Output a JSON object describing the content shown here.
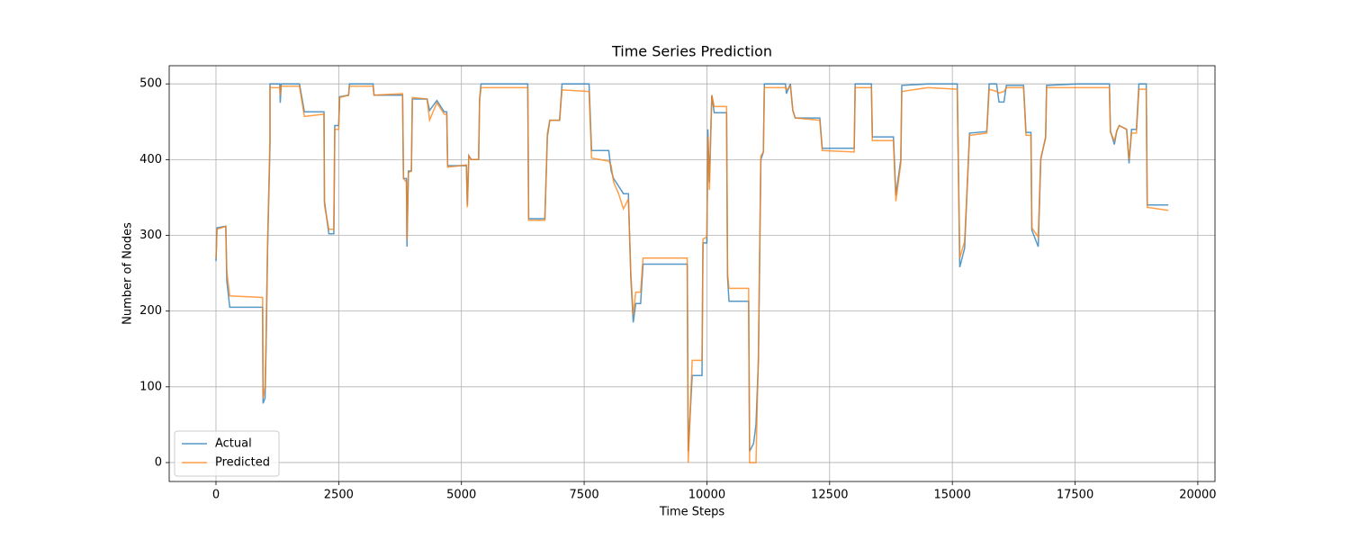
{
  "chart_data": {
    "type": "line",
    "title": "Time Series Prediction",
    "x_label": "Time Steps",
    "y_label": "Number of Nodes",
    "xlim": [
      -953,
      20350
    ],
    "ylim": [
      -25,
      524
    ],
    "xticks": [
      0,
      2500,
      5000,
      7500,
      10000,
      12500,
      15000,
      17500,
      20000
    ],
    "yticks": [
      0,
      100,
      200,
      300,
      400,
      500
    ],
    "grid": true,
    "legend": "lower left",
    "x": [
      0,
      20,
      200,
      220,
      280,
      950,
      960,
      1000,
      1020,
      1050,
      1100,
      1100,
      1300,
      1310,
      1330,
      1700,
      1800,
      2200,
      2210,
      2300,
      2400,
      2420,
      2500,
      2520,
      2700,
      2720,
      3200,
      3220,
      3800,
      3820,
      3880,
      3890,
      3920,
      3980,
      4000,
      4300,
      4350,
      4500,
      4650,
      4700,
      4720,
      5100,
      5120,
      5150,
      5200,
      5350,
      5370,
      5400,
      6350,
      6370,
      6700,
      6750,
      6800,
      7000,
      7050,
      7600,
      7650,
      8000,
      8050,
      8100,
      8200,
      8300,
      8400,
      8450,
      8500,
      8550,
      8650,
      8700,
      9600,
      9620,
      9700,
      9900,
      9920,
      10000,
      10020,
      10050,
      10100,
      10150,
      10400,
      10420,
      10450,
      10850,
      10870,
      10950,
      11000,
      11050,
      11100,
      11150,
      11170,
      11600,
      11620,
      11700,
      11750,
      11800,
      12300,
      12350,
      13000,
      13020,
      13350,
      13370,
      13800,
      13850,
      13950,
      13970,
      14500,
      15100,
      15150,
      15250,
      15350,
      15700,
      15750,
      15900,
      15950,
      16050,
      16100,
      16450,
      16500,
      16600,
      16620,
      16750,
      16800,
      16900,
      16920,
      17550,
      18200,
      18220,
      18300,
      18350,
      18400,
      18550,
      18600,
      18650,
      18750,
      18800,
      18950,
      18970,
      19400
    ],
    "series": [
      {
        "name": "Actual",
        "color": "#1f77b4",
        "values": [
          266,
          310,
          312,
          240,
          205,
          205,
          78,
          85,
          150,
          280,
          420,
          500,
          500,
          475,
          500,
          500,
          463,
          463,
          345,
          302,
          302,
          445,
          445,
          483,
          485,
          500,
          500,
          485,
          485,
          375,
          375,
          285,
          385,
          385,
          480,
          480,
          465,
          478,
          463,
          463,
          392,
          392,
          340,
          405,
          400,
          400,
          480,
          500,
          500,
          322,
          322,
          430,
          452,
          452,
          500,
          500,
          412,
          412,
          385,
          375,
          365,
          355,
          355,
          245,
          185,
          210,
          210,
          262,
          262,
          15,
          115,
          115,
          290,
          290,
          440,
          370,
          485,
          462,
          462,
          245,
          213,
          213,
          15,
          25,
          50,
          135,
          400,
          410,
          500,
          500,
          487,
          500,
          465,
          455,
          455,
          415,
          415,
          500,
          500,
          430,
          430,
          353,
          400,
          498,
          500,
          500,
          258,
          283,
          435,
          437,
          500,
          500,
          476,
          476,
          498,
          498,
          436,
          436,
          307,
          285,
          400,
          430,
          498,
          500,
          500,
          438,
          420,
          438,
          445,
          440,
          395,
          440,
          440,
          500,
          500,
          340,
          340
        ]
      },
      {
        "name": "Predicted",
        "color": "#ff7f0e",
        "values": [
          270,
          308,
          312,
          252,
          220,
          218,
          85,
          100,
          160,
          290,
          430,
          495,
          495,
          485,
          497,
          497,
          457,
          460,
          340,
          308,
          308,
          440,
          440,
          482,
          485,
          497,
          497,
          485,
          487,
          375,
          370,
          295,
          383,
          385,
          482,
          480,
          452,
          475,
          460,
          460,
          390,
          393,
          337,
          405,
          400,
          400,
          478,
          495,
          495,
          320,
          320,
          435,
          452,
          452,
          492,
          490,
          402,
          398,
          392,
          370,
          355,
          335,
          348,
          250,
          195,
          225,
          225,
          270,
          270,
          0,
          135,
          135,
          295,
          298,
          430,
          360,
          485,
          470,
          470,
          250,
          230,
          230,
          0,
          0,
          0,
          145,
          405,
          410,
          495,
          495,
          492,
          497,
          465,
          455,
          452,
          412,
          410,
          495,
          495,
          425,
          425,
          345,
          395,
          490,
          495,
          493,
          270,
          292,
          432,
          435,
          493,
          490,
          488,
          490,
          495,
          495,
          432,
          432,
          310,
          298,
          402,
          428,
          495,
          495,
          495,
          436,
          425,
          438,
          445,
          440,
          400,
          435,
          435,
          493,
          493,
          337,
          333
        ]
      }
    ]
  }
}
